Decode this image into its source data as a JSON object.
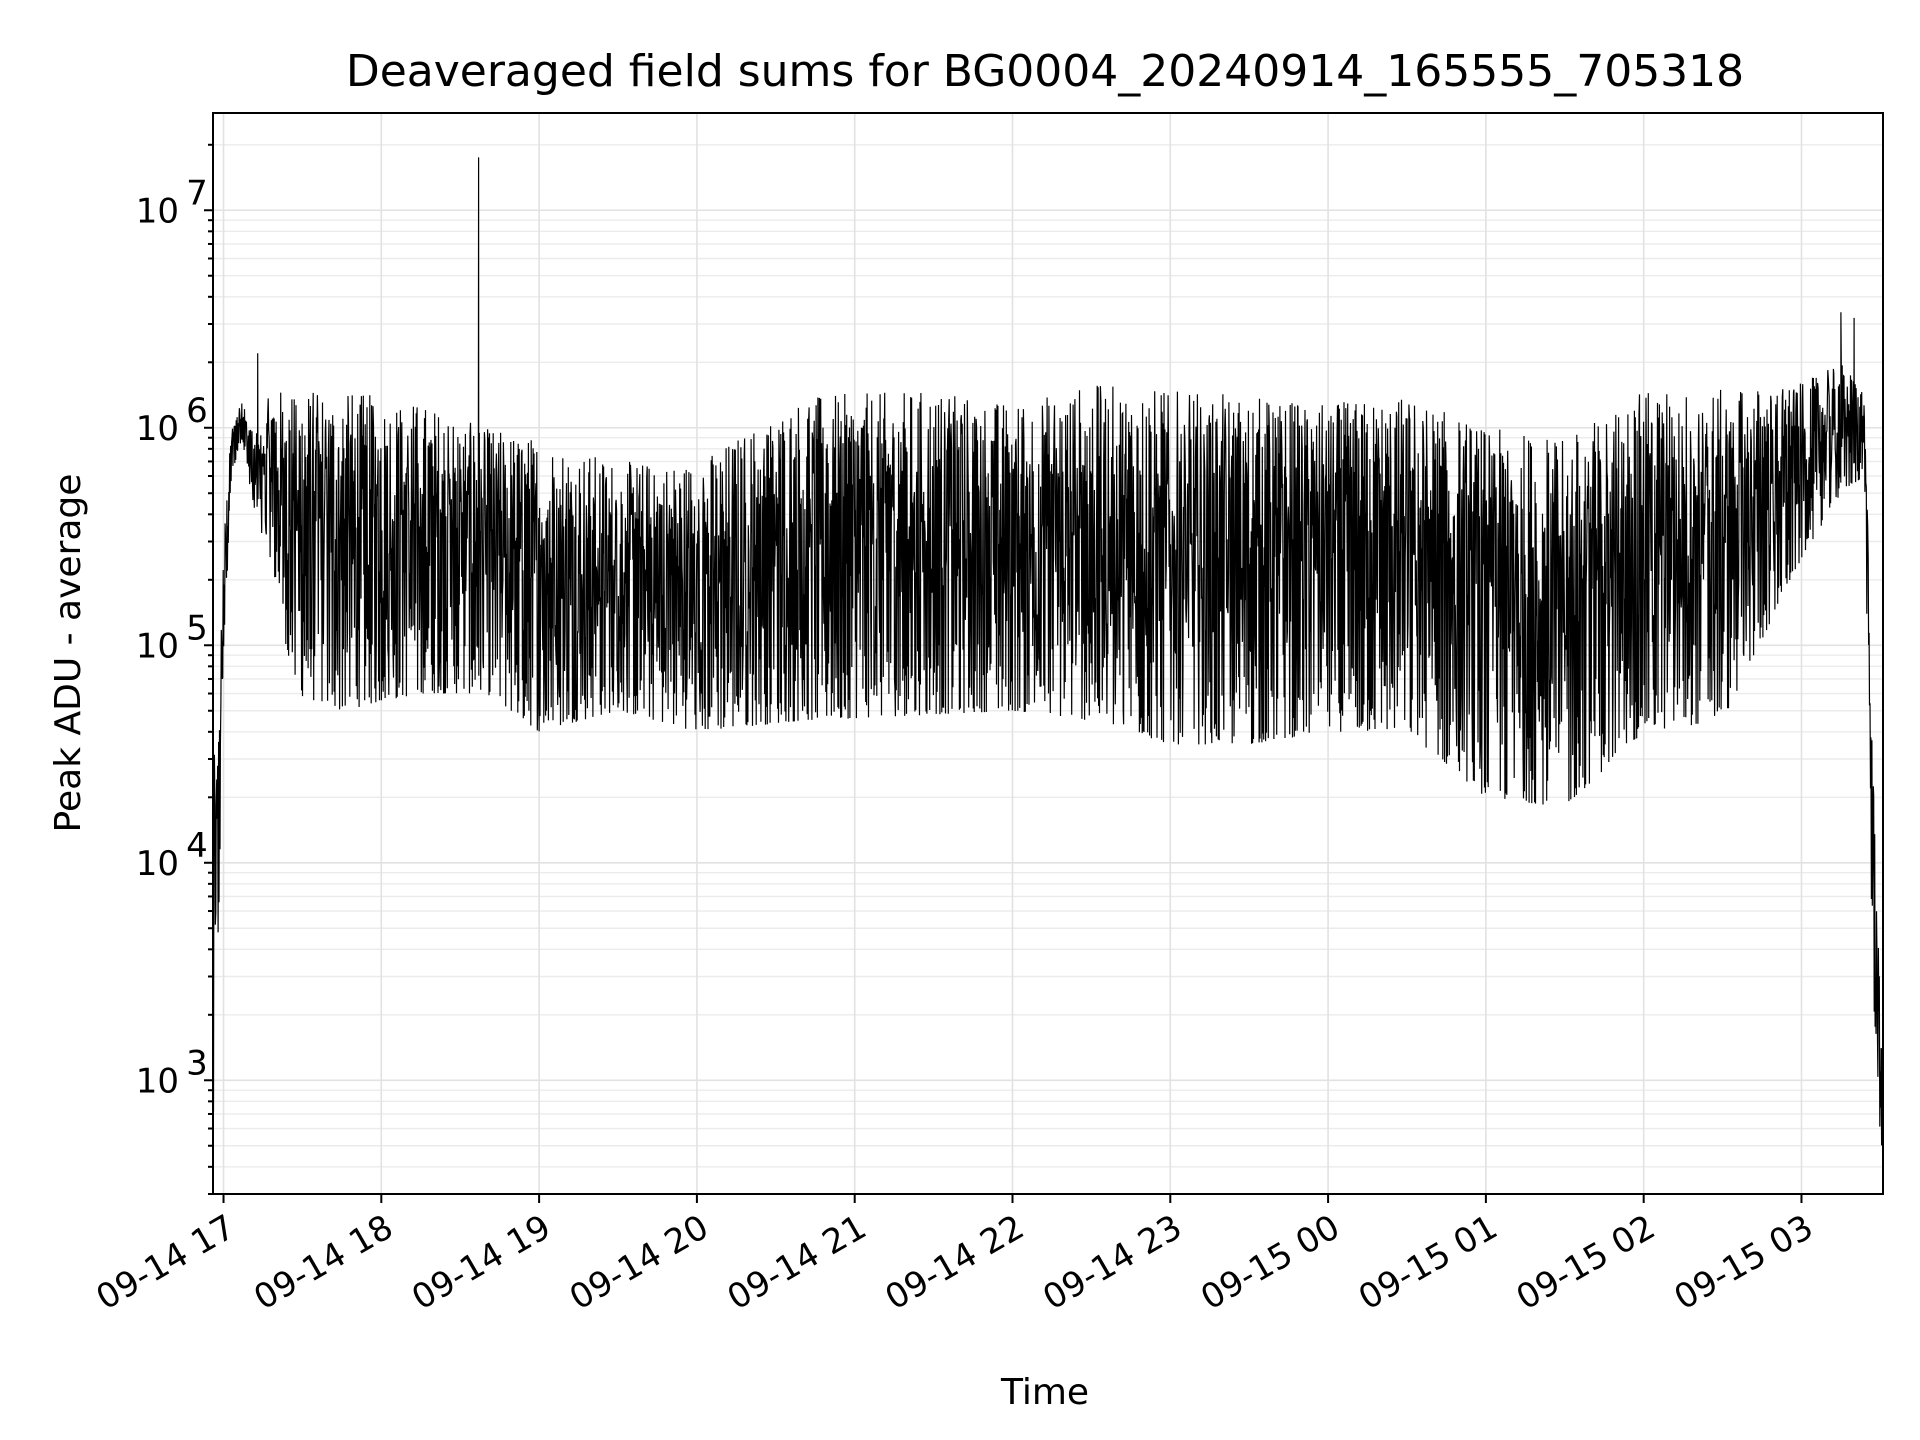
{
  "chart_data": {
    "type": "line",
    "title": "Deaveraged field sums for BG0004_20240914_165555_705318",
    "xlabel": "Time",
    "ylabel": "Peak ADU - average",
    "y_scale": "log",
    "ylim": [
      300,
      28000000
    ],
    "xlim": [
      "2024-09-14 16:56",
      "2024-09-15 03:31"
    ],
    "grid": true,
    "line_color": "#000000",
    "x_ticks": [
      {
        "t": "2024-09-14 17:00",
        "label": "09-14 17"
      },
      {
        "t": "2024-09-14 18:00",
        "label": "09-14 18"
      },
      {
        "t": "2024-09-14 19:00",
        "label": "09-14 19"
      },
      {
        "t": "2024-09-14 20:00",
        "label": "09-14 20"
      },
      {
        "t": "2024-09-14 21:00",
        "label": "09-14 21"
      },
      {
        "t": "2024-09-14 22:00",
        "label": "09-14 22"
      },
      {
        "t": "2024-09-14 23:00",
        "label": "09-14 23"
      },
      {
        "t": "2024-09-15 00:00",
        "label": "09-15 00"
      },
      {
        "t": "2024-09-15 01:00",
        "label": "09-15 01"
      },
      {
        "t": "2024-09-15 02:00",
        "label": "09-15 02"
      },
      {
        "t": "2024-09-15 03:00",
        "label": "09-15 03"
      }
    ],
    "y_ticks": [
      {
        "value": 1000,
        "base": "10",
        "exp": "3"
      },
      {
        "value": 10000,
        "base": "10",
        "exp": "4"
      },
      {
        "value": 100000,
        "base": "10",
        "exp": "5"
      },
      {
        "value": 1000000,
        "base": "10",
        "exp": "6"
      },
      {
        "value": 10000000,
        "base": "10",
        "exp": "7"
      }
    ],
    "series": [
      {
        "envelope": [
          {
            "t": "2024-09-14 16:56",
            "low": 400,
            "high": 30000
          },
          {
            "t": "2024-09-14 16:58",
            "low": 3900,
            "high": 40000
          },
          {
            "t": "2024-09-14 17:00",
            "low": 80000,
            "high": 300000
          },
          {
            "t": "2024-09-14 17:03",
            "low": 600000,
            "high": 1000000
          },
          {
            "t": "2024-09-14 17:07",
            "low": 900000,
            "high": 1400000
          },
          {
            "t": "2024-09-14 17:12",
            "low": 350000,
            "high": 900000
          },
          {
            "t": "2024-09-14 17:18",
            "low": 250000,
            "high": 1500000
          },
          {
            "t": "2024-09-14 17:27",
            "low": 60000,
            "high": 1500000
          },
          {
            "t": "2024-09-14 17:45",
            "low": 50000,
            "high": 1500000
          },
          {
            "t": "2024-09-14 18:15",
            "low": 60000,
            "high": 1300000
          },
          {
            "t": "2024-09-14 18:40",
            "low": 60000,
            "high": 1000000
          },
          {
            "t": "2024-09-14 19:00",
            "low": 40000,
            "high": 900000
          },
          {
            "t": "2024-09-14 19:30",
            "low": 50000,
            "high": 700000
          },
          {
            "t": "2024-09-14 20:00",
            "low": 40000,
            "high": 700000
          },
          {
            "t": "2024-09-14 20:40",
            "low": 45000,
            "high": 1400000
          },
          {
            "t": "2024-09-14 21:30",
            "low": 48000,
            "high": 1500000
          },
          {
            "t": "2024-09-14 22:00",
            "low": 50000,
            "high": 1300000
          },
          {
            "t": "2024-09-14 22:30",
            "low": 45000,
            "high": 1600000
          },
          {
            "t": "2024-09-14 23:00",
            "low": 35000,
            "high": 1500000
          },
          {
            "t": "2024-09-14 23:30",
            "low": 35000,
            "high": 1400000
          },
          {
            "t": "2024-09-15 00:00",
            "low": 40000,
            "high": 1300000
          },
          {
            "t": "2024-09-15 00:30",
            "low": 40000,
            "high": 1400000
          },
          {
            "t": "2024-09-15 01:00",
            "low": 20000,
            "high": 1000000
          },
          {
            "t": "2024-09-15 01:30",
            "low": 18000,
            "high": 900000
          },
          {
            "t": "2024-09-15 02:00",
            "low": 40000,
            "high": 1500000
          },
          {
            "t": "2024-09-15 02:30",
            "low": 45000,
            "high": 1500000
          },
          {
            "t": "2024-09-15 03:00",
            "low": 250000,
            "high": 1600000
          },
          {
            "t": "2024-09-15 03:15",
            "low": 500000,
            "high": 2000000
          },
          {
            "t": "2024-09-15 03:24",
            "low": 600000,
            "high": 1500000
          },
          {
            "t": "2024-09-15 03:27",
            "low": 3000,
            "high": 40000
          },
          {
            "t": "2024-09-15 03:30",
            "low": 500,
            "high": 2000
          }
        ],
        "peaks": [
          {
            "t": "2024-09-14 17:13",
            "value": 2200000
          },
          {
            "t": "2024-09-14 18:37",
            "value": 17500000
          },
          {
            "t": "2024-09-15 03:15",
            "value": 3400000
          },
          {
            "t": "2024-09-15 03:20",
            "value": 3200000
          }
        ]
      }
    ]
  }
}
